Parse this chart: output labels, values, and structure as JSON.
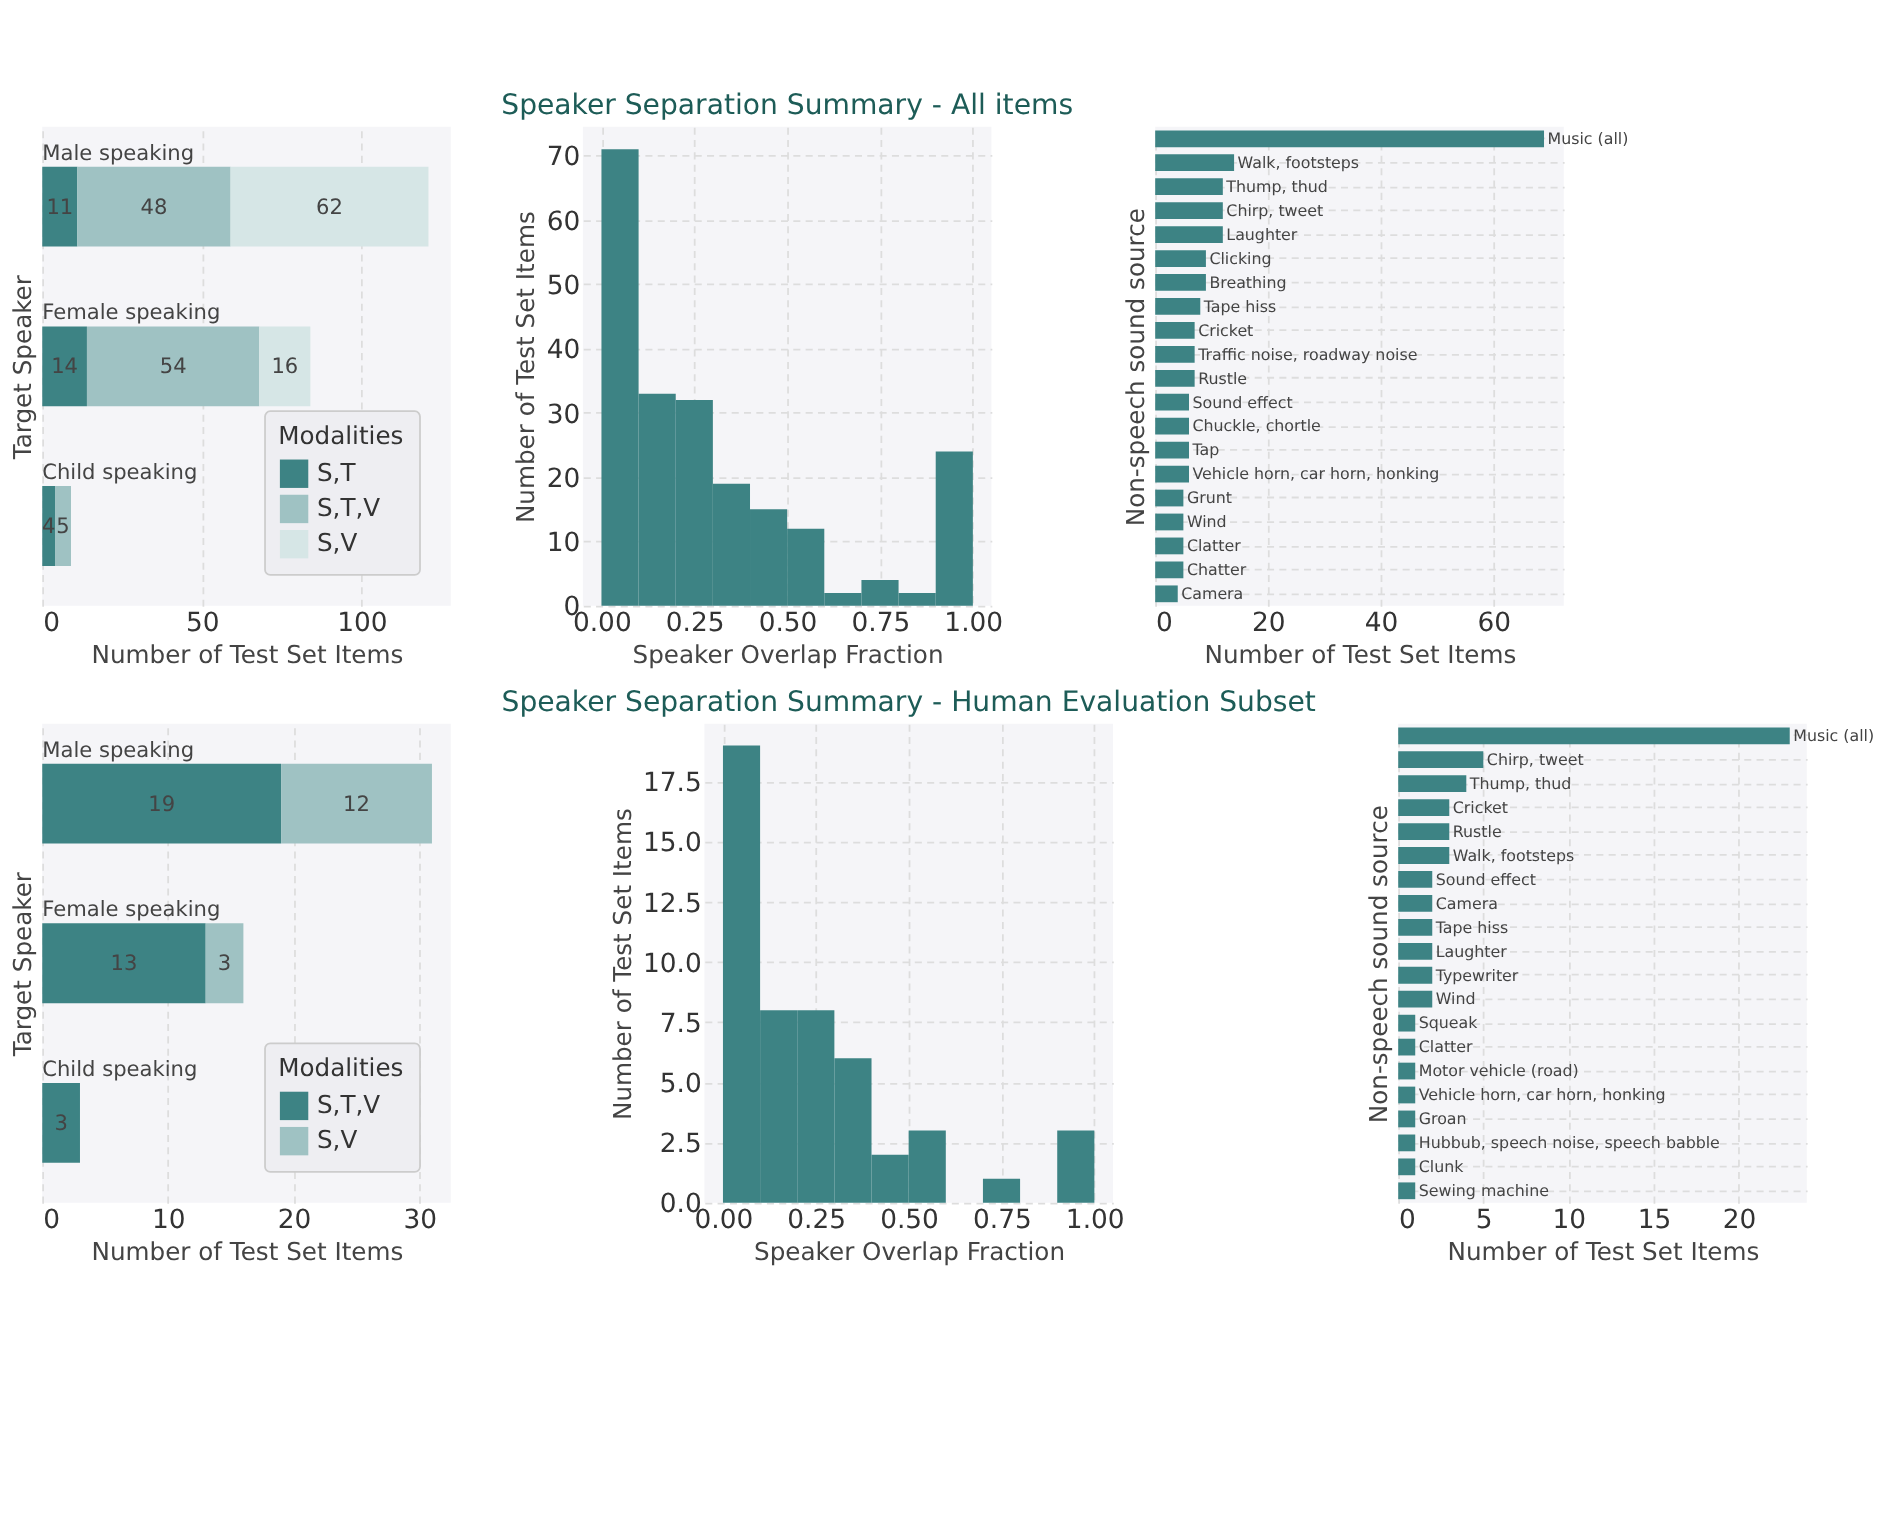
{
  "chart_data": [
    {
      "type": "bar",
      "orientation": "horizontal",
      "stacked": true,
      "xlabel": "Number of Test Set Items",
      "ylabel": "Target Speaker",
      "categories": [
        "Male speaking",
        "Female speaking",
        "Child speaking"
      ],
      "series": [
        {
          "name": "S,T",
          "color": "#3d8384",
          "values": [
            11,
            14,
            4
          ]
        },
        {
          "name": "S,T,V",
          "color": "#9fc2c3",
          "values": [
            48,
            54,
            5
          ]
        },
        {
          "name": "S,V",
          "color": "#d6e6e6",
          "values": [
            62,
            16,
            null
          ]
        }
      ],
      "xlim": [
        0,
        128
      ],
      "xticks": [
        0,
        50,
        100
      ],
      "grid": "x",
      "legend": "bottom right",
      "legend_title": "Modalities",
      "data_labels": true,
      "tick_labels": "x"
    },
    {
      "type": "histogram",
      "title": "Speaker Separation Summary - All items",
      "xlabel": "Speaker Overlap Fraction",
      "ylabel": "Number of Test Set Items",
      "bins": [
        0,
        0.1,
        0.2,
        0.3,
        0.4,
        0.5,
        0.6,
        0.7,
        0.8,
        0.9,
        1.0
      ],
      "values": [
        71,
        33,
        32,
        19,
        15,
        12,
        2,
        4,
        2,
        24
      ],
      "color": "#3d8384",
      "xlim": [
        -0.05,
        1.05
      ],
      "xticks": [
        {
          "value": 0,
          "label": "0.00"
        },
        {
          "value": 0.25,
          "label": "0.25"
        },
        {
          "value": 0.5,
          "label": "0.50"
        },
        {
          "value": 0.75,
          "label": "0.75"
        },
        {
          "value": 1,
          "label": "1.00"
        }
      ],
      "ylim": [
        0,
        74.5
      ],
      "yticks": [
        0,
        10,
        20,
        30,
        40,
        50,
        60,
        70
      ],
      "grid": true
    },
    {
      "type": "bar",
      "orientation": "horizontal",
      "xlabel": "Number of Test Set Items",
      "ylabel": "Non-speech sound source",
      "categories": [
        "Music (all)",
        "Walk, footsteps",
        "Thump, thud",
        "Chirp, tweet",
        "Laughter",
        "Clicking",
        "Breathing",
        "Tape hiss",
        "Cricket",
        "Traffic noise, roadway noise",
        "Rustle",
        "Sound effect",
        "Chuckle, chortle",
        "Tap",
        "Vehicle horn, car horn, honking",
        "Grunt",
        "Wind",
        "Clatter",
        "Chatter",
        "Camera"
      ],
      "values": [
        69,
        14,
        12,
        12,
        12,
        9,
        9,
        8,
        7,
        7,
        7,
        6,
        6,
        6,
        6,
        5,
        5,
        5,
        5,
        4
      ],
      "color": "#3d8384",
      "xlim": [
        0,
        72.5
      ],
      "xticks": [
        0,
        20,
        40,
        60
      ],
      "grid": true,
      "tick_labels": "x"
    },
    {
      "type": "bar",
      "orientation": "horizontal",
      "stacked": true,
      "xlabel": "Number of Test Set Items",
      "ylabel": "Target Speaker",
      "categories": [
        "Male speaking",
        "Female speaking",
        "Child speaking"
      ],
      "series": [
        {
          "name": "S,T,V",
          "color": "#3d8384",
          "values": [
            19,
            13,
            3
          ]
        },
        {
          "name": "S,V",
          "color": "#9fc2c3",
          "values": [
            12,
            3,
            null
          ]
        }
      ],
      "xlim": [
        0,
        32.5
      ],
      "xticks": [
        0,
        10,
        20,
        30
      ],
      "grid": "x",
      "legend": "bottom right",
      "legend_title": "Modalities",
      "data_labels": true,
      "tick_labels": "x"
    },
    {
      "type": "histogram",
      "title": "Speaker Separation Summary - Human Evaluation Subset",
      "xlabel": "Speaker Overlap Fraction",
      "ylabel": "Number of Test Set Items",
      "bins": [
        0,
        0.1,
        0.2,
        0.3,
        0.4,
        0.5,
        0.6,
        0.7,
        0.8,
        0.9,
        1.0
      ],
      "values": [
        19,
        8,
        8,
        6,
        2,
        3,
        0,
        1,
        0,
        3
      ],
      "color": "#3d8384",
      "xlim": [
        -0.05,
        1.05
      ],
      "xticks": [
        {
          "value": 0,
          "label": "0.00"
        },
        {
          "value": 0.25,
          "label": "0.25"
        },
        {
          "value": 0.5,
          "label": "0.50"
        },
        {
          "value": 0.75,
          "label": "0.75"
        },
        {
          "value": 1,
          "label": "1.00"
        }
      ],
      "ylim": [
        0,
        19.9
      ],
      "yticks": [
        {
          "value": 0,
          "label": "0.0"
        },
        {
          "value": 2.5,
          "label": "2.5"
        },
        {
          "value": 5,
          "label": "5.0"
        },
        {
          "value": 7.5,
          "label": "7.5"
        },
        {
          "value": 10,
          "label": "10.0"
        },
        {
          "value": 12.5,
          "label": "12.5"
        },
        {
          "value": 15,
          "label": "15.0"
        },
        {
          "value": 17.5,
          "label": "17.5"
        }
      ],
      "grid": true
    },
    {
      "type": "bar",
      "orientation": "horizontal",
      "xlabel": "Number of Test Set Items",
      "ylabel": "Non-speech sound source",
      "categories": [
        "Music (all)",
        "Chirp, tweet",
        "Thump, thud",
        "Cricket",
        "Rustle",
        "Walk, footsteps",
        "Sound effect",
        "Camera",
        "Tape hiss",
        "Laughter",
        "Typewriter",
        "Wind",
        "Squeak",
        "Clatter",
        "Motor vehicle (road)",
        "Vehicle horn, car horn, honking",
        "Groan",
        "Hubbub, speech noise, speech babble",
        "Clunk",
        "Sewing machine"
      ],
      "values": [
        23,
        5,
        4,
        3,
        3,
        3,
        2,
        2,
        2,
        2,
        2,
        2,
        1,
        1,
        1,
        1,
        1,
        1,
        1,
        1
      ],
      "color": "#3d8384",
      "xlim": [
        0,
        24
      ],
      "xticks": [
        0,
        5,
        10,
        15,
        20
      ],
      "grid": true,
      "tick_labels": "x"
    }
  ]
}
